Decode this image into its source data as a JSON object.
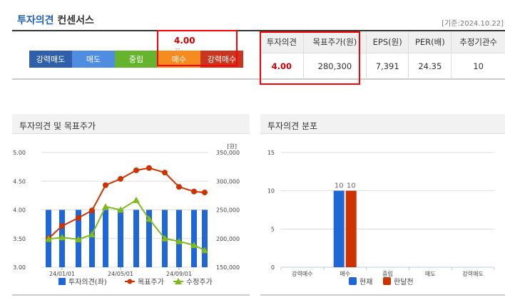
{
  "header": {
    "title_accent": "투자의견",
    "title_rest": " 컨센서스",
    "basis": "[기준:2024.10.22]"
  },
  "opinion_bar": {
    "current_value": "4.00",
    "marker": "▽",
    "segments": [
      {
        "label": "강력매도",
        "color": "#2f5fa8"
      },
      {
        "label": "매도",
        "color": "#4f8de0"
      },
      {
        "label": "중립",
        "color": "#66b32e"
      },
      {
        "label": "매수",
        "color": "#f68b1f"
      },
      {
        "label": "강력매수",
        "color": "#c9361f"
      }
    ],
    "selected": "매수"
  },
  "consensus_table": {
    "headers": [
      "투자의견",
      "목표주가(원)",
      "EPS(원)",
      "PER(배)",
      "추정기관수"
    ],
    "values": [
      "4.00",
      "280,300",
      "7,391",
      "24.35",
      "10"
    ]
  },
  "left_panel": {
    "title": "투자의견 및 목표주가"
  },
  "right_panel": {
    "title": "투자의견 분포"
  },
  "chart_data": [
    {
      "type": "bar+line",
      "x_tick_labels": [
        "24/01/01",
        "24/05/01",
        "24/09/01"
      ],
      "x_tick_index": [
        1,
        5,
        9
      ],
      "y_left": {
        "range": [
          3.0,
          5.0
        ],
        "ticks": [
          "3.00",
          "3.50",
          "4.00",
          "4.50",
          "5.00"
        ]
      },
      "y_right": {
        "range": [
          150000,
          350000
        ],
        "ticks": [
          "150,000",
          "200,000",
          "250,000",
          "300,000",
          "350,000"
        ],
        "unit": "[원]"
      },
      "grid": true,
      "legend": "bottom",
      "series": [
        {
          "name": "투자의견(좌)",
          "type": "bar",
          "axis": "left",
          "color": "#1f66d6",
          "values": [
            4,
            4,
            4,
            4,
            4,
            4,
            4,
            4,
            4,
            4,
            4,
            4
          ]
        },
        {
          "name": "목표주가",
          "type": "line",
          "axis": "right",
          "color": "#cc3300",
          "marker": "circle",
          "values": [
            200000,
            222000,
            236000,
            249000,
            293000,
            304000,
            319000,
            323000,
            315000,
            290000,
            282000,
            280300
          ]
        },
        {
          "name": "수정주가",
          "type": "line",
          "axis": "right",
          "color": "#80b91c",
          "marker": "triangle",
          "values": [
            199000,
            202000,
            198500,
            207000,
            255500,
            250000,
            267000,
            234000,
            200000,
            195000,
            188500,
            179500
          ]
        }
      ]
    },
    {
      "type": "bar",
      "categories": [
        "강력매수",
        "매수",
        "중립",
        "매도",
        "강력매도"
      ],
      "y_range": [
        0,
        15
      ],
      "y_ticks": [
        "0",
        "5",
        "10",
        "15"
      ],
      "grid": true,
      "legend": "bottom",
      "series": [
        {
          "name": "현재",
          "color": "#1f66d6",
          "values": [
            0,
            10,
            0,
            0,
            0
          ]
        },
        {
          "name": "한달전",
          "color": "#cc3300",
          "values": [
            0,
            10,
            0,
            0,
            0
          ]
        }
      ],
      "data_labels": [
        "10",
        "10"
      ]
    }
  ]
}
